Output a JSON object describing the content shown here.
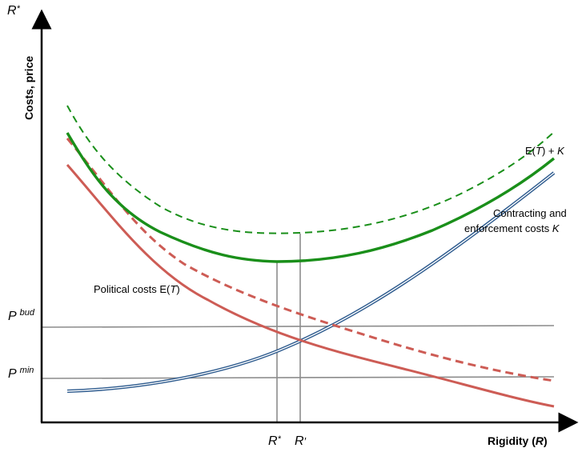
{
  "colors": {
    "axis": "#000000",
    "green": "#1a8f1a",
    "red": "#cd5c55",
    "blue": "#2f5c8f",
    "gray": "#8c8c8c"
  },
  "axes": {
    "y_label": "Costs, price",
    "y_top_label": {
      "main": "R",
      "suffix": "*"
    },
    "x_label": {
      "main": "Rigidity (",
      "var": "R",
      "close": ")"
    }
  },
  "price_levels": {
    "bud": {
      "base": "P",
      "sup": "bud"
    },
    "min": {
      "base": "P",
      "sup": "min"
    }
  },
  "x_markers": {
    "r_star": {
      "main": "R",
      "suffix": "*"
    },
    "r_prime": {
      "main": "R",
      "suffix": "′"
    }
  },
  "curves": {
    "total": {
      "part1": "E(",
      "var1": "T",
      "part2": ") + ",
      "var2": "K"
    },
    "contracting": {
      "line1": "Contracting and",
      "line2a": "enforcement costs ",
      "line2var": "K"
    },
    "political": {
      "part1": "Political costs E(",
      "var": "T",
      "part2": ")"
    }
  }
}
